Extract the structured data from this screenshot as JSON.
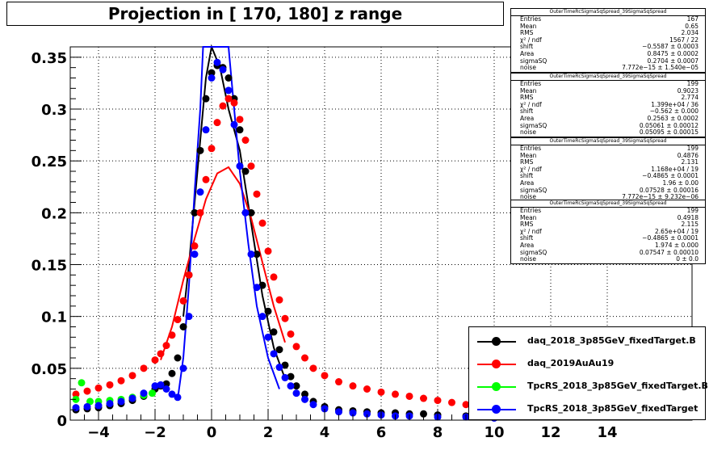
{
  "chart_data": {
    "type": "scatter",
    "title": "Projection in [ 170, 180] z range",
    "xlim": [
      -5,
      17
    ],
    "ylim": [
      0,
      0.36
    ],
    "x_ticks": [
      -4,
      -2,
      0,
      2,
      4,
      6,
      8,
      10,
      12,
      14
    ],
    "y_ticks": [
      0,
      0.05,
      0.1,
      0.15,
      0.2,
      0.25,
      0.3,
      0.35
    ],
    "grid": true,
    "legend_position": "bottom-right",
    "series": [
      {
        "name": "daq_2018_3p85GeV_fixedTarget.B",
        "color": "#000000",
        "points": [
          [
            -4.8,
            0.01
          ],
          [
            -4.4,
            0.011
          ],
          [
            -4.0,
            0.012
          ],
          [
            -3.6,
            0.014
          ],
          [
            -3.2,
            0.016
          ],
          [
            -2.8,
            0.019
          ],
          [
            -2.4,
            0.023
          ],
          [
            -2.0,
            0.03
          ],
          [
            -1.8,
            0.033
          ],
          [
            -1.6,
            0.035
          ],
          [
            -1.4,
            0.045
          ],
          [
            -1.2,
            0.06
          ],
          [
            -1.0,
            0.09
          ],
          [
            -0.8,
            0.14
          ],
          [
            -0.6,
            0.2
          ],
          [
            -0.4,
            0.26
          ],
          [
            -0.2,
            0.31
          ],
          [
            0.0,
            0.335
          ],
          [
            0.2,
            0.342
          ],
          [
            0.4,
            0.34
          ],
          [
            0.6,
            0.33
          ],
          [
            0.8,
            0.31
          ],
          [
            1.0,
            0.28
          ],
          [
            1.2,
            0.24
          ],
          [
            1.4,
            0.2
          ],
          [
            1.6,
            0.16
          ],
          [
            1.8,
            0.13
          ],
          [
            2.0,
            0.105
          ],
          [
            2.2,
            0.085
          ],
          [
            2.4,
            0.068
          ],
          [
            2.6,
            0.053
          ],
          [
            2.8,
            0.042
          ],
          [
            3.0,
            0.033
          ],
          [
            3.3,
            0.025
          ],
          [
            3.6,
            0.018
          ],
          [
            4.0,
            0.013
          ],
          [
            4.5,
            0.01
          ],
          [
            5.0,
            0.009
          ],
          [
            5.5,
            0.008
          ],
          [
            6.0,
            0.007
          ],
          [
            6.5,
            0.007
          ],
          [
            7.0,
            0.006
          ],
          [
            7.5,
            0.006
          ],
          [
            8.0,
            0.005
          ],
          [
            9.0,
            0.004
          ],
          [
            10.0,
            0.003
          ]
        ]
      },
      {
        "name": "daq_2019AuAu19",
        "color": "#ff0000",
        "points": [
          [
            -4.8,
            0.025
          ],
          [
            -4.4,
            0.028
          ],
          [
            -4.0,
            0.031
          ],
          [
            -3.6,
            0.034
          ],
          [
            -3.2,
            0.038
          ],
          [
            -2.8,
            0.043
          ],
          [
            -2.4,
            0.05
          ],
          [
            -2.0,
            0.058
          ],
          [
            -1.8,
            0.064
          ],
          [
            -1.6,
            0.072
          ],
          [
            -1.4,
            0.082
          ],
          [
            -1.2,
            0.097
          ],
          [
            -1.0,
            0.115
          ],
          [
            -0.8,
            0.14
          ],
          [
            -0.6,
            0.168
          ],
          [
            -0.4,
            0.2
          ],
          [
            -0.2,
            0.232
          ],
          [
            0.0,
            0.262
          ],
          [
            0.2,
            0.287
          ],
          [
            0.4,
            0.303
          ],
          [
            0.6,
            0.31
          ],
          [
            0.8,
            0.306
          ],
          [
            1.0,
            0.29
          ],
          [
            1.2,
            0.27
          ],
          [
            1.4,
            0.245
          ],
          [
            1.6,
            0.218
          ],
          [
            1.8,
            0.19
          ],
          [
            2.0,
            0.163
          ],
          [
            2.2,
            0.138
          ],
          [
            2.4,
            0.116
          ],
          [
            2.6,
            0.098
          ],
          [
            2.8,
            0.083
          ],
          [
            3.0,
            0.071
          ],
          [
            3.3,
            0.06
          ],
          [
            3.6,
            0.05
          ],
          [
            4.0,
            0.043
          ],
          [
            4.5,
            0.037
          ],
          [
            5.0,
            0.033
          ],
          [
            5.5,
            0.03
          ],
          [
            6.0,
            0.027
          ],
          [
            6.5,
            0.025
          ],
          [
            7.0,
            0.023
          ],
          [
            7.5,
            0.021
          ],
          [
            8.0,
            0.019
          ],
          [
            8.5,
            0.017
          ],
          [
            9.0,
            0.015
          ],
          [
            9.5,
            0.013
          ],
          [
            10.0,
            0.012
          ],
          [
            11.0,
            0.01
          ],
          [
            12.0,
            0.008
          ]
        ]
      },
      {
        "name": "TpcRS_2018_3p85GeV_fixedTarget.B",
        "color": "#00ff00",
        "points": [
          [
            -4.8,
            0.02
          ],
          [
            -4.6,
            0.036
          ],
          [
            -4.3,
            0.018
          ],
          [
            -4.0,
            0.018
          ],
          [
            -3.6,
            0.019
          ],
          [
            -3.2,
            0.02
          ],
          [
            -2.8,
            0.022
          ],
          [
            -2.4,
            0.024
          ],
          [
            -2.1,
            0.026
          ]
        ]
      },
      {
        "name": "TpcRS_2018_3p85GeV_fixedTarget",
        "color": "#0000ff",
        "points": [
          [
            -4.8,
            0.012
          ],
          [
            -4.4,
            0.013
          ],
          [
            -4.0,
            0.014
          ],
          [
            -3.6,
            0.016
          ],
          [
            -3.2,
            0.018
          ],
          [
            -2.8,
            0.021
          ],
          [
            -2.4,
            0.026
          ],
          [
            -2.0,
            0.033
          ],
          [
            -1.8,
            0.034
          ],
          [
            -1.6,
            0.03
          ],
          [
            -1.4,
            0.025
          ],
          [
            -1.2,
            0.022
          ],
          [
            -1.0,
            0.05
          ],
          [
            -0.8,
            0.1
          ],
          [
            -0.6,
            0.16
          ],
          [
            -0.4,
            0.22
          ],
          [
            -0.2,
            0.28
          ],
          [
            0.0,
            0.33
          ],
          [
            0.2,
            0.345
          ],
          [
            0.4,
            0.338
          ],
          [
            0.6,
            0.318
          ],
          [
            0.8,
            0.285
          ],
          [
            1.0,
            0.245
          ],
          [
            1.2,
            0.2
          ],
          [
            1.4,
            0.16
          ],
          [
            1.6,
            0.128
          ],
          [
            1.8,
            0.1
          ],
          [
            2.0,
            0.08
          ],
          [
            2.2,
            0.064
          ],
          [
            2.4,
            0.051
          ],
          [
            2.6,
            0.041
          ],
          [
            2.8,
            0.033
          ],
          [
            3.0,
            0.026
          ],
          [
            3.3,
            0.02
          ],
          [
            3.6,
            0.015
          ],
          [
            4.0,
            0.011
          ],
          [
            4.5,
            0.008
          ],
          [
            5.0,
            0.007
          ],
          [
            5.5,
            0.006
          ],
          [
            6.0,
            0.005
          ],
          [
            6.5,
            0.004
          ],
          [
            7.0,
            0.004
          ],
          [
            8.0,
            0.003
          ],
          [
            9.0,
            0.003
          ],
          [
            10.0,
            0.002
          ]
        ]
      }
    ],
    "fits": [
      {
        "series": "daq_2018_3p85GeV_fixedTarget.B",
        "color": "#000000",
        "points": [
          [
            -1.0,
            0.1
          ],
          [
            -0.8,
            0.15
          ],
          [
            -0.6,
            0.21
          ],
          [
            -0.4,
            0.27
          ],
          [
            -0.2,
            0.33
          ],
          [
            0.0,
            0.36
          ],
          [
            0.3,
            0.34
          ],
          [
            0.6,
            0.3
          ],
          [
            1.0,
            0.26
          ],
          [
            1.4,
            0.19
          ],
          [
            1.8,
            0.12
          ],
          [
            2.2,
            0.07
          ],
          [
            2.6,
            0.04
          ]
        ]
      },
      {
        "series": "daq_2019AuAu19",
        "color": "#ff0000",
        "points": [
          [
            -1.8,
            0.058
          ],
          [
            -1.4,
            0.09
          ],
          [
            -1.0,
            0.135
          ],
          [
            -0.6,
            0.175
          ],
          [
            -0.2,
            0.213
          ],
          [
            0.2,
            0.238
          ],
          [
            0.6,
            0.244
          ],
          [
            1.0,
            0.228
          ],
          [
            1.4,
            0.195
          ],
          [
            1.8,
            0.152
          ],
          [
            2.2,
            0.11
          ],
          [
            2.6,
            0.075
          ]
        ]
      },
      {
        "series": "TpcRS_2018_3p85GeV_fixedTarget",
        "color": "#0000ff",
        "points": [
          [
            -1.2,
            0.02
          ],
          [
            -1.0,
            0.06
          ],
          [
            -0.8,
            0.13
          ],
          [
            -0.6,
            0.22
          ],
          [
            -0.4,
            0.3
          ],
          [
            -0.3,
            0.36
          ],
          [
            0.6,
            0.36
          ],
          [
            0.8,
            0.3
          ],
          [
            1.0,
            0.24
          ],
          [
            1.3,
            0.17
          ],
          [
            1.6,
            0.11
          ],
          [
            2.0,
            0.06
          ],
          [
            2.4,
            0.03
          ]
        ]
      }
    ]
  },
  "stats": [
    {
      "header": "OuterTimeRcSigmaSqSpread_39SigmaSqSpread",
      "rows": [
        {
          "label": "Entries",
          "value": "167"
        },
        {
          "label": "Mean",
          "value": "0.65"
        },
        {
          "label": "RMS",
          "value": "2.034"
        },
        {
          "label": "χ² / ndf",
          "value": "1567 / 22"
        },
        {
          "label": "shift",
          "value": "−0.5587 ± 0.0003"
        },
        {
          "label": "Area",
          "value": "0.8475 ± 0.0002"
        },
        {
          "label": "sigmaSQ",
          "value": "0.2704 ± 0.0007"
        },
        {
          "label": "noise",
          "value": "7.772e−15 ± 1.540e−05"
        }
      ]
    },
    {
      "header": "OuterTimeRcSigmaSqSpread_39SigmaSqSpread",
      "rows": [
        {
          "label": "Entries",
          "value": "199"
        },
        {
          "label": "Mean",
          "value": "0.9023"
        },
        {
          "label": "RMS",
          "value": "2.774"
        },
        {
          "label": "χ² / ndf",
          "value": "1.399e+04 / 36"
        },
        {
          "label": "shift",
          "value": "−0.562 ± 0.000"
        },
        {
          "label": "Area",
          "value": "0.2563 ± 0.0002"
        },
        {
          "label": "sigmaSQ",
          "value": "0.05061 ± 0.00012"
        },
        {
          "label": "noise",
          "value": "0.05095 ± 0.00015"
        }
      ]
    },
    {
      "header": "OuterTimeRcSigmaSqSpread_39SigmaSqSpread",
      "rows": [
        {
          "label": "Entries",
          "value": "199"
        },
        {
          "label": "Mean",
          "value": "0.4876"
        },
        {
          "label": "RMS",
          "value": "2.131"
        },
        {
          "label": "χ² / ndf",
          "value": "1.168e+04 / 19"
        },
        {
          "label": "shift",
          "value": "−0.4865 ± 0.0001"
        },
        {
          "label": "Area",
          "value": "1.96 ± 0.00"
        },
        {
          "label": "sigmaSQ",
          "value": "0.07528 ± 0.00016"
        },
        {
          "label": "noise",
          "value": "7.772e−15 ± 9.232e−06"
        }
      ]
    },
    {
      "header": "OuterTimeRcSigmaSqSpread_39SigmaSqSpread",
      "rows": [
        {
          "label": "Entries",
          "value": "199"
        },
        {
          "label": "Mean",
          "value": "0.4918"
        },
        {
          "label": "RMS",
          "value": "2.115"
        },
        {
          "label": "χ² / ndf",
          "value": "2.65e+04 / 19"
        },
        {
          "label": "shift",
          "value": "−0.4865 ± 0.0001"
        },
        {
          "label": "Area",
          "value": "1.974 ± 0.000"
        },
        {
          "label": "sigmaSQ",
          "value": "0.07547 ± 0.00010"
        },
        {
          "label": "noise",
          "value": "0 ± 0.0"
        }
      ]
    }
  ]
}
